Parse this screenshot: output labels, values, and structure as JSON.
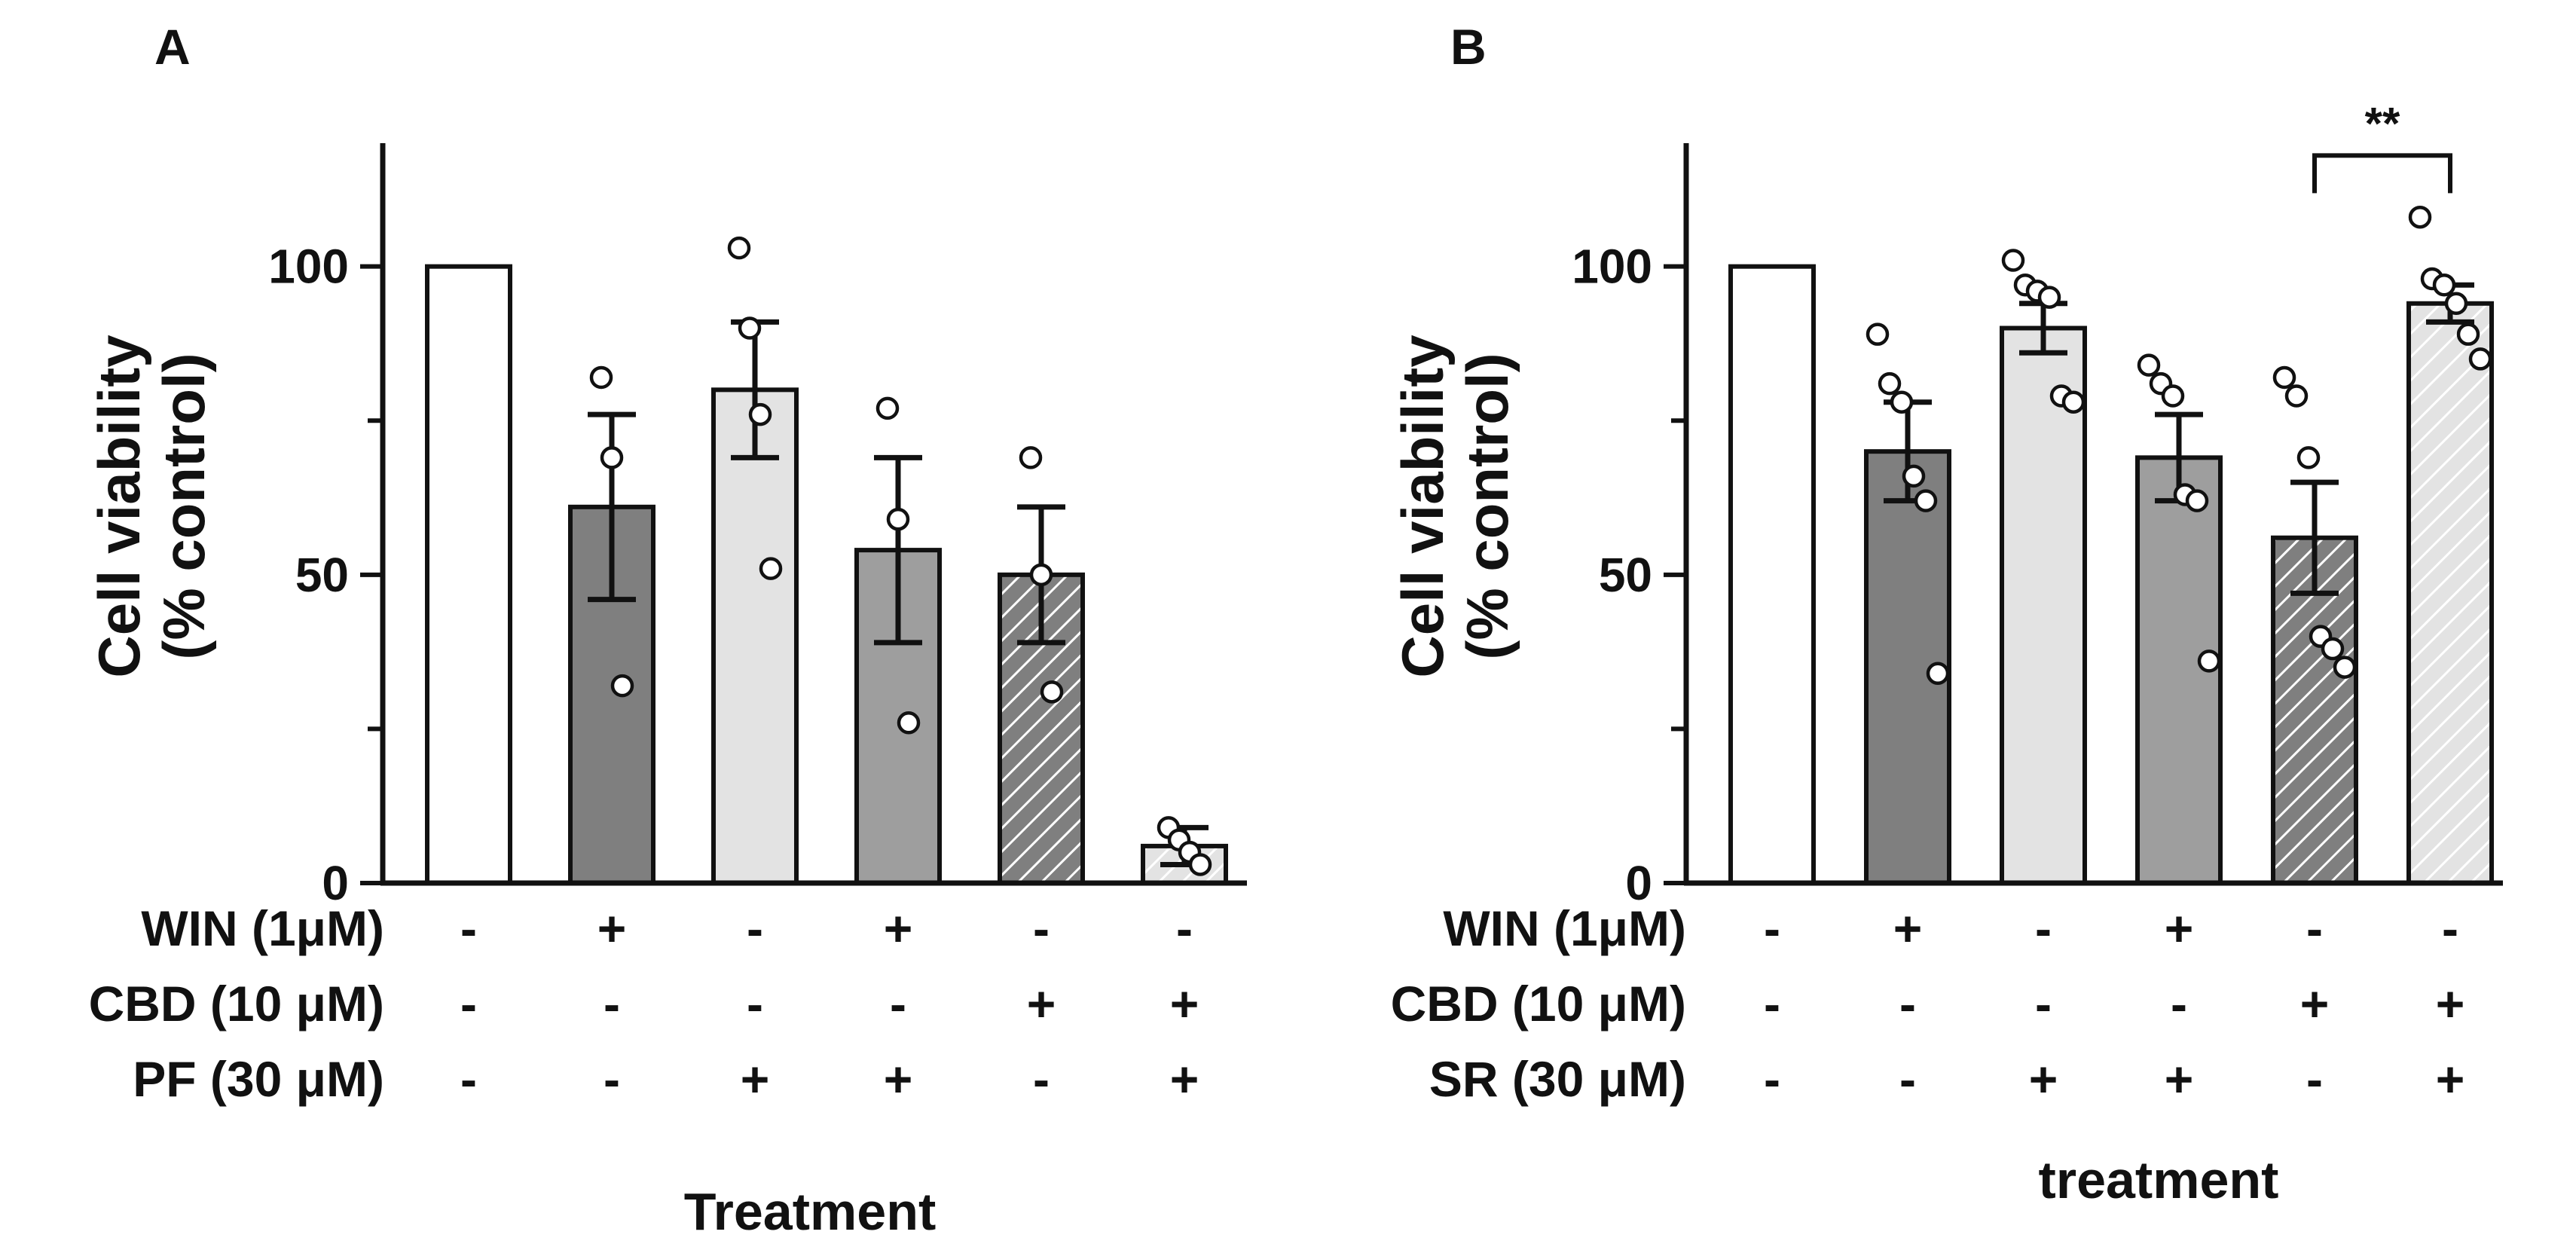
{
  "colors": {
    "white": "#ffffff",
    "dark": "#7f7f7f",
    "light": "#e3e3e3",
    "mid": "#9e9e9e",
    "outline": "#111111"
  },
  "chart_data": [
    {
      "panel": "A",
      "type": "bar",
      "ylabel": "Cell viability",
      "ylabel2": "(% control)",
      "xlabel": "Treatment",
      "ylim": [
        0,
        120
      ],
      "yticks": [
        0,
        50,
        100
      ],
      "bars": [
        {
          "value": 100,
          "error": 0,
          "fill": "white",
          "hatch": false,
          "points": []
        },
        {
          "value": 61,
          "error": 15,
          "fill": "dark",
          "hatch": false,
          "points": [
            82,
            69,
            32
          ]
        },
        {
          "value": 80,
          "error": 11,
          "fill": "light",
          "hatch": false,
          "points": [
            103,
            90,
            76,
            51
          ]
        },
        {
          "value": 54,
          "error": 15,
          "fill": "mid",
          "hatch": false,
          "points": [
            77,
            59,
            26
          ]
        },
        {
          "value": 50,
          "error": 11,
          "fill": "dark",
          "hatch": true,
          "points": [
            69,
            50,
            31
          ]
        },
        {
          "value": 6,
          "error": 3,
          "fill": "light",
          "hatch": true,
          "points": [
            9,
            7,
            5,
            3
          ]
        }
      ],
      "rows": [
        {
          "label": "WIN (1μM)",
          "signs": [
            "-",
            "+",
            "-",
            "+",
            "-",
            "-"
          ]
        },
        {
          "label": "CBD (10 μM)",
          "signs": [
            "-",
            "-",
            "-",
            "-",
            "+",
            "+"
          ]
        },
        {
          "label": "PF (30 μM)",
          "signs": [
            "-",
            "-",
            "+",
            "+",
            "-",
            "+"
          ]
        }
      ],
      "significance": []
    },
    {
      "panel": "B",
      "type": "bar",
      "ylabel": "Cell viability",
      "ylabel2": "(% control)",
      "xlabel": "treatment",
      "ylim": [
        0,
        120
      ],
      "yticks": [
        0,
        50,
        100
      ],
      "bars": [
        {
          "value": 100,
          "error": 0,
          "fill": "white",
          "hatch": false,
          "points": []
        },
        {
          "value": 70,
          "error": 8,
          "fill": "dark",
          "hatch": false,
          "points": [
            89,
            81,
            78,
            66,
            62,
            34
          ]
        },
        {
          "value": 90,
          "error": 4,
          "fill": "light",
          "hatch": false,
          "points": [
            101,
            97,
            96,
            95,
            79,
            78
          ]
        },
        {
          "value": 69,
          "error": 7,
          "fill": "mid",
          "hatch": false,
          "points": [
            84,
            81,
            79,
            63,
            62,
            36
          ]
        },
        {
          "value": 56,
          "error": 9,
          "fill": "dark",
          "hatch": true,
          "points": [
            82,
            79,
            69,
            40,
            38,
            35
          ]
        },
        {
          "value": 94,
          "error": 3,
          "fill": "light",
          "hatch": true,
          "points": [
            108,
            98,
            97,
            94,
            89,
            85
          ]
        }
      ],
      "rows": [
        {
          "label": "WIN (1μM)",
          "signs": [
            "-",
            "+",
            "-",
            "+",
            "-",
            "-"
          ]
        },
        {
          "label": "CBD (10 μM)",
          "signs": [
            "-",
            "-",
            "-",
            "-",
            "+",
            "+"
          ]
        },
        {
          "label": "SR (30 μM)",
          "signs": [
            "-",
            "-",
            "+",
            "+",
            "-",
            "+"
          ]
        }
      ],
      "significance": [
        {
          "from": 4,
          "to": 5,
          "label": "**",
          "y": 118
        }
      ]
    }
  ]
}
